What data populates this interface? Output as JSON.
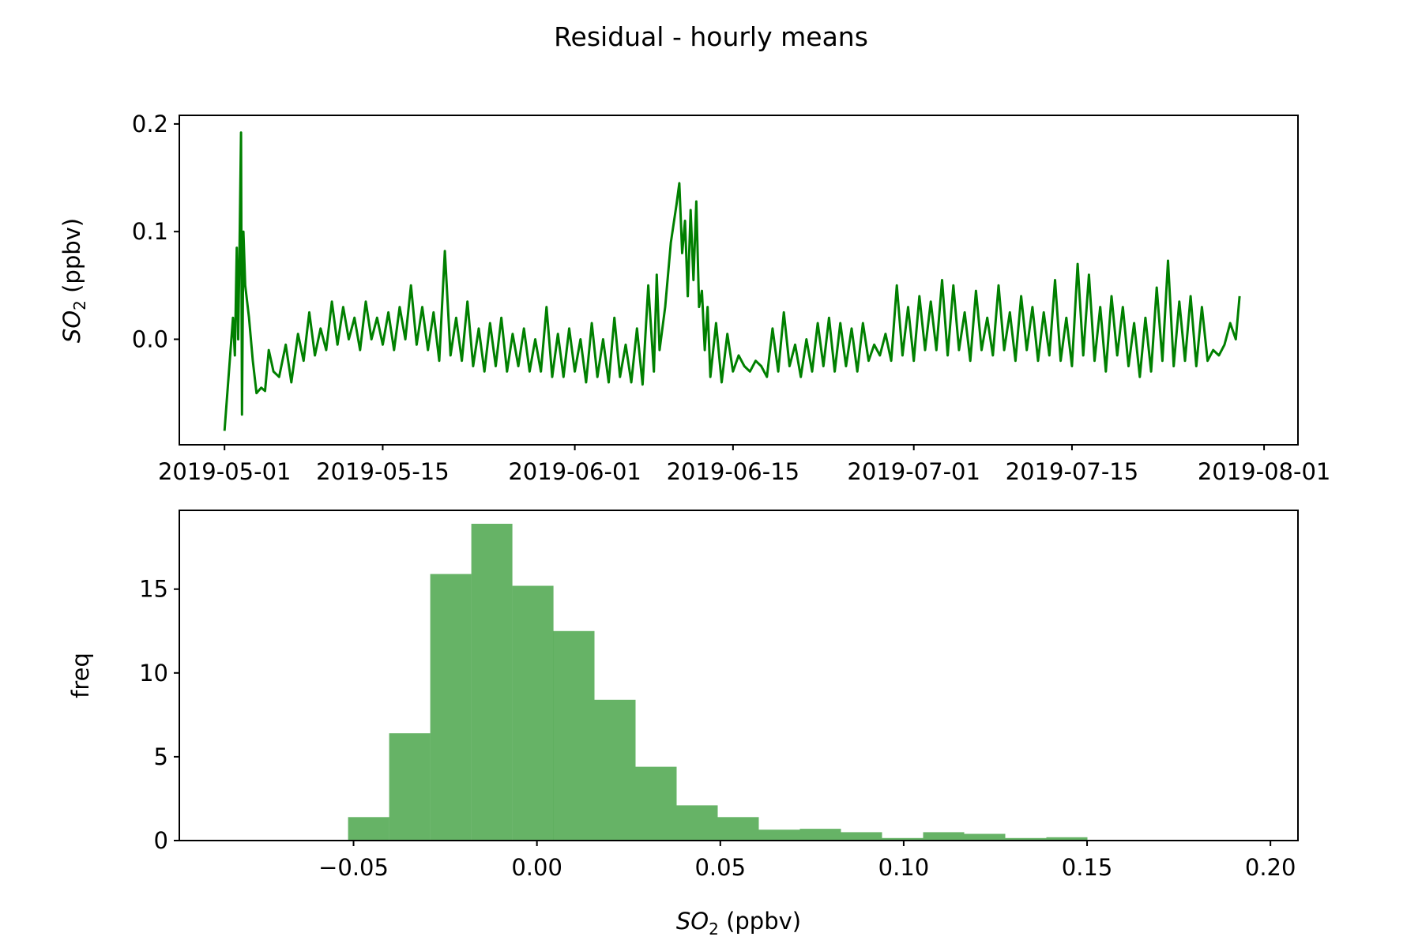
{
  "figure": {
    "title": "Residual - hourly means"
  },
  "chart_data": [
    {
      "type": "line",
      "ylabel_main": "SO",
      "ylabel_sub": "2",
      "ylabel_tail": " (ppbv)",
      "series": [
        {
          "color": "#008000"
        }
      ],
      "xlim": [
        "2019-04-27",
        "2019-08-04"
      ],
      "ylim": [
        -0.098,
        0.208
      ],
      "xticks": [
        "2019-05-01",
        "2019-05-15",
        "2019-06-01",
        "2019-06-15",
        "2019-07-01",
        "2019-07-15",
        "2019-08-01"
      ],
      "ytick_values": [
        0.0,
        0.1,
        0.2
      ],
      "ytick_labels": [
        "0.0",
        "0.1",
        "0.2"
      ],
      "points": [
        [
          "2019-05-01 00:00",
          -0.085
        ],
        [
          "2019-05-01 18:00",
          0.02
        ],
        [
          "2019-05-01 22:00",
          -0.015
        ],
        [
          "2019-05-02 02:00",
          0.085
        ],
        [
          "2019-05-02 05:00",
          0.0
        ],
        [
          "2019-05-02 08:00",
          0.09
        ],
        [
          "2019-05-02 11:00",
          0.192
        ],
        [
          "2019-05-02 13:00",
          -0.07
        ],
        [
          "2019-05-02 16:00",
          0.1
        ],
        [
          "2019-05-02 20:00",
          0.05
        ],
        [
          "2019-05-03 04:00",
          0.02
        ],
        [
          "2019-05-03 12:00",
          -0.02
        ],
        [
          "2019-05-03 20:00",
          -0.05
        ],
        [
          "2019-05-04 06:00",
          -0.045
        ],
        [
          "2019-05-04 14:00",
          -0.048
        ],
        [
          "2019-05-04 22:00",
          -0.01
        ],
        [
          "2019-05-05 08:00",
          -0.03
        ],
        [
          "2019-05-05 20:00",
          -0.035
        ],
        [
          "2019-05-06 10:00",
          -0.005
        ],
        [
          "2019-05-06 22:00",
          -0.04
        ],
        [
          "2019-05-07 12:00",
          0.005
        ],
        [
          "2019-05-08 00:00",
          -0.02
        ],
        [
          "2019-05-08 12:00",
          0.025
        ],
        [
          "2019-05-09 00:00",
          -0.015
        ],
        [
          "2019-05-09 12:00",
          0.01
        ],
        [
          "2019-05-10 00:00",
          -0.01
        ],
        [
          "2019-05-10 12:00",
          0.035
        ],
        [
          "2019-05-11 00:00",
          -0.005
        ],
        [
          "2019-05-11 12:00",
          0.03
        ],
        [
          "2019-05-12 00:00",
          0.0
        ],
        [
          "2019-05-12 12:00",
          0.02
        ],
        [
          "2019-05-13 00:00",
          -0.01
        ],
        [
          "2019-05-13 12:00",
          0.035
        ],
        [
          "2019-05-14 00:00",
          0.0
        ],
        [
          "2019-05-14 12:00",
          0.02
        ],
        [
          "2019-05-15 00:00",
          -0.005
        ],
        [
          "2019-05-15 12:00",
          0.025
        ],
        [
          "2019-05-16 00:00",
          -0.01
        ],
        [
          "2019-05-16 12:00",
          0.03
        ],
        [
          "2019-05-17 00:00",
          0.0
        ],
        [
          "2019-05-17 12:00",
          0.05
        ],
        [
          "2019-05-18 00:00",
          -0.005
        ],
        [
          "2019-05-18 12:00",
          0.03
        ],
        [
          "2019-05-19 00:00",
          -0.01
        ],
        [
          "2019-05-19 12:00",
          0.025
        ],
        [
          "2019-05-20 00:00",
          -0.02
        ],
        [
          "2019-05-20 12:00",
          0.082
        ],
        [
          "2019-05-21 00:00",
          -0.015
        ],
        [
          "2019-05-21 12:00",
          0.02
        ],
        [
          "2019-05-22 00:00",
          -0.02
        ],
        [
          "2019-05-22 12:00",
          0.035
        ],
        [
          "2019-05-23 00:00",
          -0.025
        ],
        [
          "2019-05-23 12:00",
          0.01
        ],
        [
          "2019-05-24 00:00",
          -0.03
        ],
        [
          "2019-05-24 12:00",
          0.015
        ],
        [
          "2019-05-25 00:00",
          -0.025
        ],
        [
          "2019-05-25 12:00",
          0.02
        ],
        [
          "2019-05-26 00:00",
          -0.03
        ],
        [
          "2019-05-26 12:00",
          0.005
        ],
        [
          "2019-05-27 00:00",
          -0.025
        ],
        [
          "2019-05-27 12:00",
          0.01
        ],
        [
          "2019-05-28 00:00",
          -0.03
        ],
        [
          "2019-05-28 12:00",
          0.0
        ],
        [
          "2019-05-29 00:00",
          -0.03
        ],
        [
          "2019-05-29 12:00",
          0.03
        ],
        [
          "2019-05-30 00:00",
          -0.035
        ],
        [
          "2019-05-30 12:00",
          0.005
        ],
        [
          "2019-05-31 00:00",
          -0.035
        ],
        [
          "2019-05-31 12:00",
          0.01
        ],
        [
          "2019-06-01 00:00",
          -0.03
        ],
        [
          "2019-06-01 12:00",
          0.0
        ],
        [
          "2019-06-02 00:00",
          -0.04
        ],
        [
          "2019-06-02 12:00",
          0.015
        ],
        [
          "2019-06-03 00:00",
          -0.035
        ],
        [
          "2019-06-03 12:00",
          0.0
        ],
        [
          "2019-06-04 00:00",
          -0.04
        ],
        [
          "2019-06-04 12:00",
          0.02
        ],
        [
          "2019-06-05 00:00",
          -0.035
        ],
        [
          "2019-06-05 12:00",
          -0.005
        ],
        [
          "2019-06-06 00:00",
          -0.04
        ],
        [
          "2019-06-06 12:00",
          0.01
        ],
        [
          "2019-06-07 00:00",
          -0.042
        ],
        [
          "2019-06-07 12:00",
          0.05
        ],
        [
          "2019-06-08 00:00",
          -0.03
        ],
        [
          "2019-06-08 06:00",
          0.06
        ],
        [
          "2019-06-08 12:00",
          -0.01
        ],
        [
          "2019-06-09 00:00",
          0.03
        ],
        [
          "2019-06-09 12:00",
          0.09
        ],
        [
          "2019-06-10 00:00",
          0.125
        ],
        [
          "2019-06-10 06:00",
          0.145
        ],
        [
          "2019-06-10 12:00",
          0.08
        ],
        [
          "2019-06-10 18:00",
          0.11
        ],
        [
          "2019-06-11 00:00",
          0.04
        ],
        [
          "2019-06-11 06:00",
          0.12
        ],
        [
          "2019-06-11 12:00",
          0.055
        ],
        [
          "2019-06-11 18:00",
          0.128
        ],
        [
          "2019-06-12 00:00",
          0.03
        ],
        [
          "2019-06-12 06:00",
          0.045
        ],
        [
          "2019-06-12 12:00",
          -0.01
        ],
        [
          "2019-06-12 18:00",
          0.03
        ],
        [
          "2019-06-13 00:00",
          -0.035
        ],
        [
          "2019-06-13 12:00",
          0.015
        ],
        [
          "2019-06-14 00:00",
          -0.04
        ],
        [
          "2019-06-14 12:00",
          0.005
        ],
        [
          "2019-06-15 00:00",
          -0.03
        ],
        [
          "2019-06-15 12:00",
          -0.015
        ],
        [
          "2019-06-16 00:00",
          -0.025
        ],
        [
          "2019-06-16 12:00",
          -0.03
        ],
        [
          "2019-06-17 00:00",
          -0.02
        ],
        [
          "2019-06-17 12:00",
          -0.025
        ],
        [
          "2019-06-18 00:00",
          -0.035
        ],
        [
          "2019-06-18 12:00",
          0.01
        ],
        [
          "2019-06-19 00:00",
          -0.03
        ],
        [
          "2019-06-19 12:00",
          0.025
        ],
        [
          "2019-06-20 00:00",
          -0.025
        ],
        [
          "2019-06-20 12:00",
          -0.005
        ],
        [
          "2019-06-21 00:00",
          -0.035
        ],
        [
          "2019-06-21 12:00",
          0.0
        ],
        [
          "2019-06-22 00:00",
          -0.03
        ],
        [
          "2019-06-22 12:00",
          0.015
        ],
        [
          "2019-06-23 00:00",
          -0.025
        ],
        [
          "2019-06-23 12:00",
          0.02
        ],
        [
          "2019-06-24 00:00",
          -0.03
        ],
        [
          "2019-06-24 12:00",
          0.015
        ],
        [
          "2019-06-25 00:00",
          -0.025
        ],
        [
          "2019-06-25 12:00",
          0.01
        ],
        [
          "2019-06-26 00:00",
          -0.03
        ],
        [
          "2019-06-26 12:00",
          0.015
        ],
        [
          "2019-06-27 00:00",
          -0.02
        ],
        [
          "2019-06-27 12:00",
          -0.005
        ],
        [
          "2019-06-28 00:00",
          -0.015
        ],
        [
          "2019-06-28 12:00",
          0.005
        ],
        [
          "2019-06-29 00:00",
          -0.02
        ],
        [
          "2019-06-29 12:00",
          0.05
        ],
        [
          "2019-06-30 00:00",
          -0.015
        ],
        [
          "2019-06-30 12:00",
          0.03
        ],
        [
          "2019-07-01 00:00",
          -0.02
        ],
        [
          "2019-07-01 12:00",
          0.04
        ],
        [
          "2019-07-02 00:00",
          -0.01
        ],
        [
          "2019-07-02 12:00",
          0.035
        ],
        [
          "2019-07-03 00:00",
          -0.01
        ],
        [
          "2019-07-03 12:00",
          0.055
        ],
        [
          "2019-07-04 00:00",
          -0.015
        ],
        [
          "2019-07-04 12:00",
          0.05
        ],
        [
          "2019-07-05 00:00",
          -0.01
        ],
        [
          "2019-07-05 12:00",
          0.025
        ],
        [
          "2019-07-06 00:00",
          -0.02
        ],
        [
          "2019-07-06 12:00",
          0.045
        ],
        [
          "2019-07-07 00:00",
          -0.01
        ],
        [
          "2019-07-07 12:00",
          0.02
        ],
        [
          "2019-07-08 00:00",
          -0.015
        ],
        [
          "2019-07-08 12:00",
          0.05
        ],
        [
          "2019-07-09 00:00",
          -0.01
        ],
        [
          "2019-07-09 12:00",
          0.025
        ],
        [
          "2019-07-10 00:00",
          -0.02
        ],
        [
          "2019-07-10 12:00",
          0.04
        ],
        [
          "2019-07-11 00:00",
          -0.01
        ],
        [
          "2019-07-11 12:00",
          0.03
        ],
        [
          "2019-07-12 00:00",
          -0.02
        ],
        [
          "2019-07-12 12:00",
          0.025
        ],
        [
          "2019-07-13 00:00",
          -0.015
        ],
        [
          "2019-07-13 12:00",
          0.055
        ],
        [
          "2019-07-14 00:00",
          -0.02
        ],
        [
          "2019-07-14 12:00",
          0.02
        ],
        [
          "2019-07-15 00:00",
          -0.025
        ],
        [
          "2019-07-15 12:00",
          0.07
        ],
        [
          "2019-07-16 00:00",
          -0.015
        ],
        [
          "2019-07-16 12:00",
          0.06
        ],
        [
          "2019-07-17 00:00",
          -0.02
        ],
        [
          "2019-07-17 12:00",
          0.03
        ],
        [
          "2019-07-18 00:00",
          -0.03
        ],
        [
          "2019-07-18 12:00",
          0.04
        ],
        [
          "2019-07-19 00:00",
          -0.015
        ],
        [
          "2019-07-19 12:00",
          0.03
        ],
        [
          "2019-07-20 00:00",
          -0.025
        ],
        [
          "2019-07-20 12:00",
          0.015
        ],
        [
          "2019-07-21 00:00",
          -0.035
        ],
        [
          "2019-07-21 12:00",
          0.02
        ],
        [
          "2019-07-22 00:00",
          -0.03
        ],
        [
          "2019-07-22 12:00",
          0.048
        ],
        [
          "2019-07-23 00:00",
          -0.02
        ],
        [
          "2019-07-23 12:00",
          0.073
        ],
        [
          "2019-07-24 00:00",
          -0.025
        ],
        [
          "2019-07-24 12:00",
          0.035
        ],
        [
          "2019-07-25 00:00",
          -0.02
        ],
        [
          "2019-07-25 12:00",
          0.04
        ],
        [
          "2019-07-26 00:00",
          -0.025
        ],
        [
          "2019-07-26 12:00",
          0.03
        ],
        [
          "2019-07-27 00:00",
          -0.02
        ],
        [
          "2019-07-27 12:00",
          -0.01
        ],
        [
          "2019-07-28 00:00",
          -0.015
        ],
        [
          "2019-07-28 12:00",
          -0.005
        ],
        [
          "2019-07-29 00:00",
          0.015
        ],
        [
          "2019-07-29 12:00",
          0.0
        ],
        [
          "2019-07-29 20:00",
          0.04
        ]
      ]
    },
    {
      "type": "bar",
      "xlabel_main": "SO",
      "xlabel_sub": "2",
      "xlabel_tail": " (ppbv)",
      "ylabel": "freq",
      "color": "#008000",
      "opacity": 0.6,
      "xlim": [
        -0.0975,
        0.2075
      ],
      "ylim": [
        0,
        19.7
      ],
      "xtick_values": [
        -0.05,
        0.0,
        0.05,
        0.1,
        0.15,
        0.2
      ],
      "xtick_labels": [
        "−0.05",
        "0.00",
        "0.05",
        "0.10",
        "0.15",
        "0.20"
      ],
      "ytick_values": [
        0,
        5,
        10,
        15
      ],
      "ytick_labels": [
        "0",
        "5",
        "10",
        "15"
      ],
      "bin_edges": [
        -0.0515,
        -0.0403,
        -0.0291,
        -0.0179,
        -0.0067,
        0.0045,
        0.0157,
        0.0269,
        0.0381,
        0.0493,
        0.0605,
        0.0717,
        0.0829,
        0.0941,
        0.1053,
        0.1165,
        0.1277,
        0.1389,
        0.1501
      ],
      "values": [
        1.4,
        6.4,
        15.9,
        18.9,
        15.2,
        12.5,
        8.4,
        4.4,
        2.1,
        1.4,
        0.65,
        0.7,
        0.5,
        0.15,
        0.5,
        0.4,
        0.15,
        0.2
      ]
    }
  ]
}
